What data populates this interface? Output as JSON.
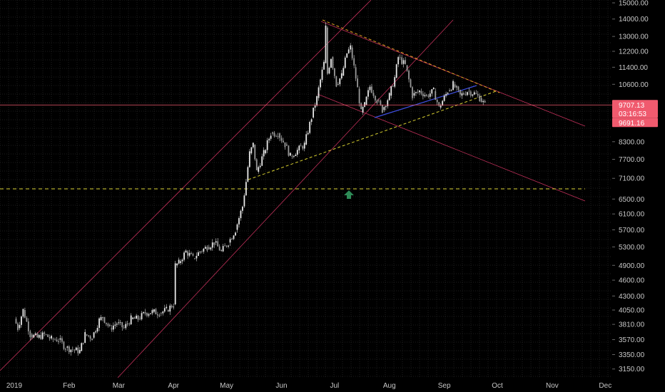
{
  "chart_data": {
    "type": "line",
    "title": "",
    "xlabel": "",
    "ylabel": "",
    "y_scale": "log",
    "ylim": [
      3100,
      15000
    ],
    "x_range": [
      "2019-01-01",
      "2019-12-20"
    ],
    "grid": true,
    "price_ticks": [
      15000,
      14000,
      13000,
      12200,
      11400,
      10600,
      8300,
      7700,
      7100,
      6500,
      6100,
      5700,
      5300,
      4900,
      4600,
      4300,
      4050,
      3810,
      3570,
      3350,
      3150
    ],
    "price_tick_labels": [
      "15000.00",
      "14000.00",
      "13000.00",
      "12200.00",
      "11400.00",
      "10600.00",
      "8300.00",
      "7700.00",
      "7100.00",
      "6500.00",
      "6100.00",
      "5700.00",
      "5300.00",
      "4900.00",
      "4600.00",
      "4300.00",
      "4050.00",
      "3810.00",
      "3570.00",
      "3350.00",
      "3150.00"
    ],
    "month_ticks": [
      {
        "date": "2019-01-01",
        "label": "2019"
      },
      {
        "date": "2019-02-01",
        "label": "Feb"
      },
      {
        "date": "2019-03-01",
        "label": "Mar"
      },
      {
        "date": "2019-04-01",
        "label": "Apr"
      },
      {
        "date": "2019-05-01",
        "label": "May"
      },
      {
        "date": "2019-06-01",
        "label": "Jun"
      },
      {
        "date": "2019-07-01",
        "label": "Jul"
      },
      {
        "date": "2019-08-01",
        "label": "Aug"
      },
      {
        "date": "2019-09-01",
        "label": "Sep"
      },
      {
        "date": "2019-10-01",
        "label": "Oct"
      },
      {
        "date": "2019-11-01",
        "label": "Nov"
      },
      {
        "date": "2019-12-01",
        "label": "Dec"
      }
    ],
    "series": [
      {
        "values": [
          [
            "2019-01-01",
            3900
          ],
          [
            "2019-01-03",
            3750
          ],
          [
            "2019-01-06",
            4050
          ],
          [
            "2019-01-10",
            3650
          ],
          [
            "2019-01-14",
            3600
          ],
          [
            "2019-01-18",
            3650
          ],
          [
            "2019-01-22",
            3580
          ],
          [
            "2019-01-26",
            3570
          ],
          [
            "2019-01-30",
            3450
          ],
          [
            "2019-02-03",
            3420
          ],
          [
            "2019-02-07",
            3400
          ],
          [
            "2019-02-10",
            3650
          ],
          [
            "2019-02-14",
            3600
          ],
          [
            "2019-02-18",
            3880
          ],
          [
            "2019-02-20",
            3930
          ],
          [
            "2019-02-24",
            3750
          ],
          [
            "2019-02-28",
            3830
          ],
          [
            "2019-03-04",
            3750
          ],
          [
            "2019-03-08",
            3900
          ],
          [
            "2019-03-12",
            3900
          ],
          [
            "2019-03-16",
            4000
          ],
          [
            "2019-03-20",
            4020
          ],
          [
            "2019-03-24",
            4000
          ],
          [
            "2019-03-28",
            4050
          ],
          [
            "2019-04-01",
            4150
          ],
          [
            "2019-04-02",
            4900
          ],
          [
            "2019-04-04",
            4950
          ],
          [
            "2019-04-08",
            5200
          ],
          [
            "2019-04-12",
            5050
          ],
          [
            "2019-04-16",
            5200
          ],
          [
            "2019-04-20",
            5300
          ],
          [
            "2019-04-24",
            5400
          ],
          [
            "2019-04-28",
            5200
          ],
          [
            "2019-05-02",
            5400
          ],
          [
            "2019-05-06",
            5700
          ],
          [
            "2019-05-10",
            6300
          ],
          [
            "2019-05-12",
            7000
          ],
          [
            "2019-05-14",
            7900
          ],
          [
            "2019-05-16",
            8200
          ],
          [
            "2019-05-18",
            7300
          ],
          [
            "2019-05-22",
            7900
          ],
          [
            "2019-05-26",
            8600
          ],
          [
            "2019-05-30",
            8600
          ],
          [
            "2019-06-03",
            8200
          ],
          [
            "2019-06-06",
            7800
          ],
          [
            "2019-06-10",
            8000
          ],
          [
            "2019-06-14",
            8200
          ],
          [
            "2019-06-18",
            9200
          ],
          [
            "2019-06-21",
            10000
          ],
          [
            "2019-06-23",
            10800
          ],
          [
            "2019-06-25",
            11600
          ],
          [
            "2019-06-26",
            13500
          ],
          [
            "2019-06-27",
            11100
          ],
          [
            "2019-06-29",
            11900
          ],
          [
            "2019-07-02",
            10600
          ],
          [
            "2019-07-05",
            11000
          ],
          [
            "2019-07-08",
            12100
          ],
          [
            "2019-07-10",
            12400
          ],
          [
            "2019-07-12",
            11400
          ],
          [
            "2019-07-14",
            10400
          ],
          [
            "2019-07-16",
            9400
          ],
          [
            "2019-07-18",
            9700
          ],
          [
            "2019-07-21",
            10500
          ],
          [
            "2019-07-25",
            9900
          ],
          [
            "2019-07-28",
            9500
          ],
          [
            "2019-08-01",
            10100
          ],
          [
            "2019-08-04",
            10900
          ],
          [
            "2019-08-06",
            11900
          ],
          [
            "2019-08-10",
            11500
          ],
          [
            "2019-08-14",
            10100
          ],
          [
            "2019-08-18",
            10300
          ],
          [
            "2019-08-22",
            10100
          ],
          [
            "2019-08-26",
            10300
          ],
          [
            "2019-08-29",
            9600
          ],
          [
            "2019-09-03",
            10300
          ],
          [
            "2019-09-06",
            10600
          ],
          [
            "2019-09-10",
            10100
          ],
          [
            "2019-09-14",
            10300
          ],
          [
            "2019-09-18",
            10200
          ],
          [
            "2019-09-21",
            10000
          ],
          [
            "2019-09-24",
            9700
          ]
        ]
      }
    ],
    "price_line": {
      "label": "9707.13",
      "value": 9707.13
    },
    "price_badges": [
      {
        "label": "03:16:53"
      },
      {
        "label": "9691.16"
      }
    ]
  },
  "colors": {
    "background": "#000000",
    "price": "#d8d8d8",
    "current_line": "#f05a6e",
    "badge": "#f05a6e",
    "channel": "#c2305a",
    "dashed_upper": "#e0a020",
    "dashed_support": "#d8d030",
    "blue_line": "#3f4fe0",
    "arrow": "#2e8b57"
  }
}
